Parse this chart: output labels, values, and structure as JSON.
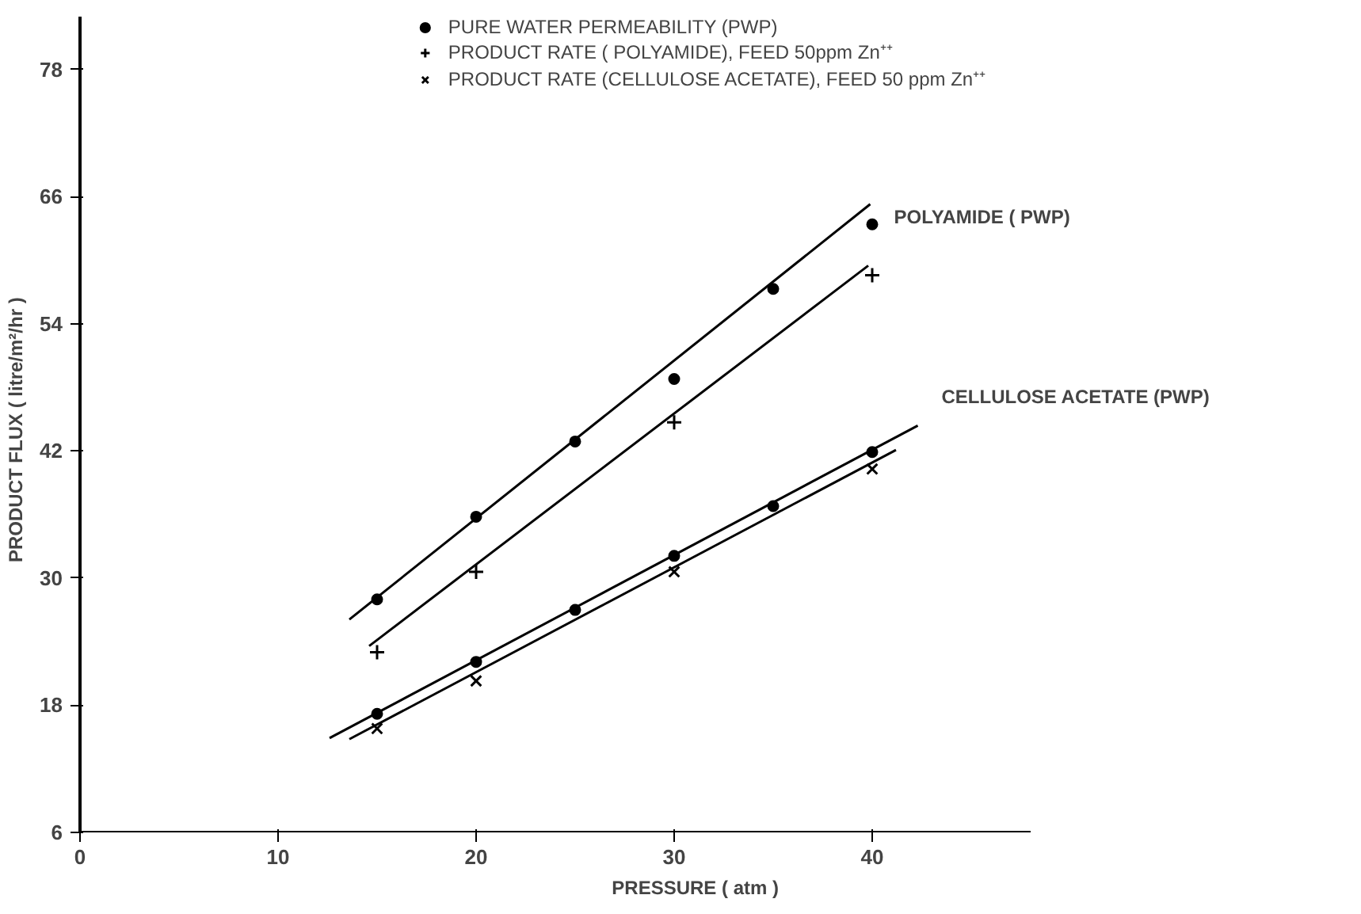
{
  "chart_data": {
    "type": "scatter",
    "xlabel": "PRESSURE  ( atm )",
    "ylabel": "PRODUCT FLUX   ( litre/m²/hr )",
    "xlim": [
      0,
      48
    ],
    "ylim": [
      6,
      83
    ],
    "xticks": [
      0,
      10,
      20,
      30,
      40
    ],
    "yticks": [
      6,
      18,
      30,
      42,
      54,
      66,
      78
    ],
    "grid": false,
    "legend": "top",
    "series": [
      {
        "name": "PURE WATER PERMEABILITY (PWP)",
        "marker": "circle",
        "color": "#000000",
        "x": [
          15,
          20,
          25,
          30,
          35,
          40
        ],
        "values": [
          28.0,
          35.8,
          42.9,
          48.8,
          57.3,
          63.4
        ]
      },
      {
        "name": "PRODUCT RATE ( POLYAMIDE), FEED 50ppm Zn⁺⁺",
        "marker": "cross",
        "color": "#000000",
        "x": [
          15,
          20,
          30,
          40
        ],
        "values": [
          23.0,
          30.6,
          44.7,
          58.6
        ]
      },
      {
        "name": "PRODUCT RATE (CELLULOSE ACETATE), FEED 50 ppm Zn⁺⁺",
        "marker": "x",
        "color": "#000000",
        "x": [
          15,
          20,
          30,
          40
        ],
        "values": [
          15.8,
          20.3,
          30.6,
          40.3
        ]
      },
      {
        "marker": "circle",
        "color": "#000000",
        "x": [
          15,
          20,
          25,
          30,
          35,
          40
        ],
        "values": [
          17.2,
          22.1,
          27.0,
          32.1,
          36.8,
          41.9
        ]
      },
      {
        "type": "line",
        "color": "#000000",
        "x": [
          13.6,
          39.9
        ],
        "values": [
          26.1,
          65.3
        ]
      },
      {
        "type": "line",
        "color": "#000000",
        "x": [
          14.6,
          39.8
        ],
        "values": [
          23.6,
          59.5
        ]
      },
      {
        "type": "line",
        "color": "#000000",
        "x": [
          12.6,
          42.3
        ],
        "values": [
          14.9,
          44.4
        ]
      },
      {
        "type": "line",
        "color": "#000000",
        "x": [
          13.6,
          41.2
        ],
        "values": [
          14.8,
          42.1
        ]
      }
    ],
    "annotations": [
      "POLYAMIDE ( PWP)",
      "CELLULOSE ACETATE (PWP)"
    ]
  }
}
